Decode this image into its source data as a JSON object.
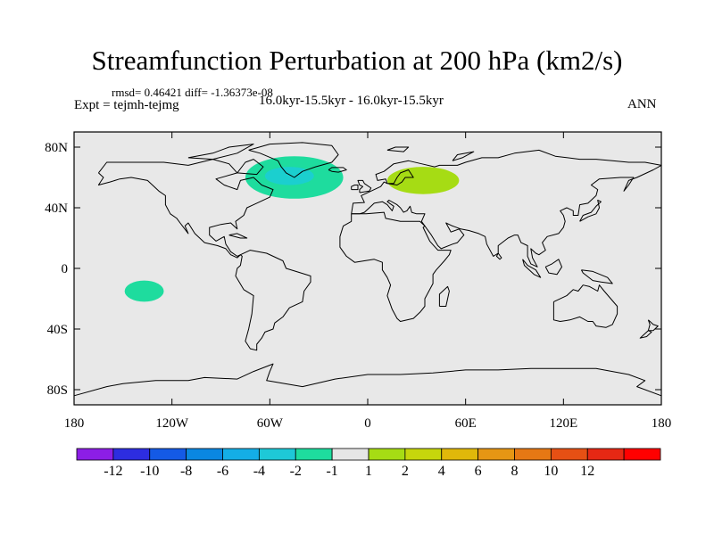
{
  "title": "Streamfunction Perturbation at 200 hPa (km2/s)",
  "stats": "rmsd= 0.46421 diff= -1.36373e-08",
  "experiment": "Expt = tejmh-tejmg",
  "period": "16.0kyr-15.5kyr - 16.0kyr-15.5kyr",
  "season": "ANN",
  "map": {
    "projection": "cylindrical-equidistant",
    "lon_range": [
      -180,
      180
    ],
    "lat_range": [
      -90,
      90
    ],
    "lat_ticks": [
      {
        "value": 80,
        "label": "80N"
      },
      {
        "value": 40,
        "label": "40N"
      },
      {
        "value": 0,
        "label": "0"
      },
      {
        "value": -40,
        "label": "40S"
      },
      {
        "value": -80,
        "label": "80S"
      }
    ],
    "lon_ticks": [
      {
        "value": -180,
        "label": "180"
      },
      {
        "value": -120,
        "label": "120W"
      },
      {
        "value": -60,
        "label": "60W"
      },
      {
        "value": 0,
        "label": "0"
      },
      {
        "value": 60,
        "label": "60E"
      },
      {
        "value": 120,
        "label": "120E"
      },
      {
        "value": 180,
        "label": "180"
      }
    ],
    "background_color": "#e8e8e8",
    "features": [
      {
        "name": "north-atlantic-anomaly",
        "lon": -45,
        "lat": 60,
        "rx": 30,
        "ry": 14,
        "level": -2,
        "color": "#1edc9e",
        "core": {
          "lon": -48,
          "lat": 61,
          "rx": 15,
          "ry": 6,
          "level": -4,
          "color": "#1bcfcf"
        }
      },
      {
        "name": "scandinavia-anomaly",
        "lon": 34,
        "lat": 58,
        "rx": 22,
        "ry": 9,
        "level": 1,
        "color": "#a6dc14"
      },
      {
        "name": "south-pacific-anomaly",
        "lon": -137,
        "lat": -15,
        "rx": 12,
        "ry": 7,
        "level": -2,
        "color": "#1edc9e"
      }
    ]
  },
  "colorbar": {
    "colors": [
      "#8c1ee6",
      "#2d2de0",
      "#145ae6",
      "#0a87e1",
      "#14aee6",
      "#1ec8d7",
      "#1edc9e",
      "#e6e6e6",
      "#a6dc14",
      "#c6d60c",
      "#e0b80a",
      "#e69614",
      "#e67814",
      "#e65014",
      "#e62814",
      "#ff0000"
    ],
    "labels": [
      "-12",
      "-10",
      "-8",
      "-6",
      "-4",
      "-2",
      "-1",
      "1",
      "2",
      "4",
      "6",
      "8",
      "10",
      "12"
    ]
  },
  "chart_data": {
    "type": "heatmap",
    "title": "Streamfunction Perturbation at 200 hPa (km2/s)",
    "levels": [
      -12,
      -10,
      -8,
      -6,
      -4,
      -2,
      -1,
      1,
      2,
      4,
      6,
      8,
      10,
      12
    ],
    "xlim": [
      -180,
      180
    ],
    "ylim": [
      -90,
      90
    ],
    "anomalies": [
      {
        "region": "North Atlantic",
        "lon": -45,
        "lat": 60,
        "value_range": [
          -4,
          -1
        ]
      },
      {
        "region": "Scandinavia",
        "lon": 34,
        "lat": 58,
        "value_range": [
          1,
          2
        ]
      },
      {
        "region": "South Pacific",
        "lon": -137,
        "lat": -15,
        "value_range": [
          -2,
          -1
        ]
      }
    ]
  }
}
